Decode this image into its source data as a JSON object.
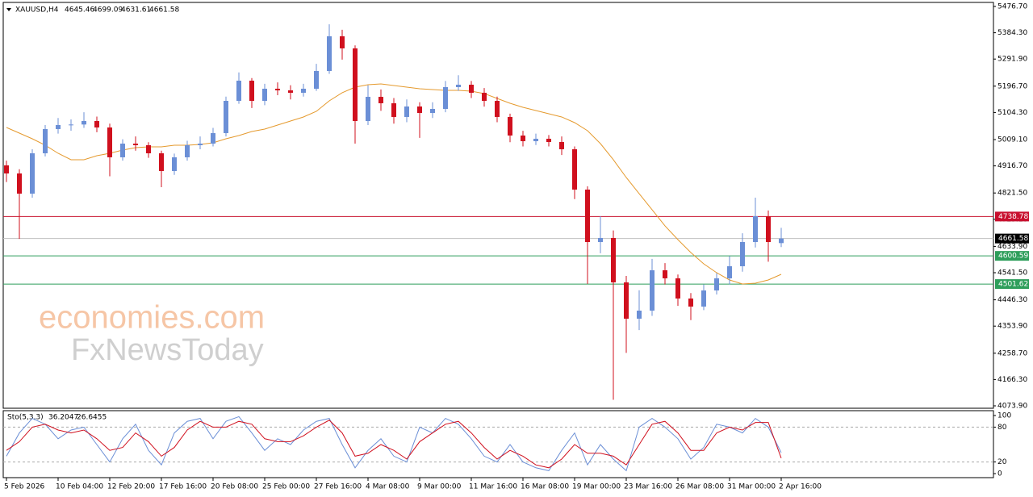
{
  "chart_data": [
    {
      "type": "candlestick",
      "symbol": "XAUUSD,H4",
      "watermark": [
        "economies.com",
        "FxNewsToday"
      ],
      "categories": [
        "5 Feb 2026",
        null,
        null,
        null,
        "10 Feb 04:00",
        null,
        null,
        null,
        "12 Feb 20:00",
        null,
        null,
        null,
        "17 Feb 16:00",
        null,
        null,
        null,
        "20 Feb 08:00",
        null,
        null,
        null,
        "25 Feb 00:00",
        null,
        null,
        null,
        "27 Feb 16:00",
        null,
        null,
        null,
        "4 Mar 08:00",
        null,
        null,
        null,
        "9 Mar 00:00",
        null,
        null,
        null,
        "11 Mar 16:00",
        null,
        null,
        null,
        "16 Mar 08:00",
        null,
        null,
        null,
        "19 Mar 00:00",
        null,
        null,
        null,
        "23 Mar 16:00",
        null,
        null,
        null,
        "26 Mar 08:00",
        null,
        null,
        null,
        "31 Mar 00:00",
        null,
        null,
        null,
        "2 Apr 16:00"
      ],
      "open": [
        4918.5,
        4890.1,
        4819.2,
        4960.9,
        5046.0,
        5060.1,
        5062.0,
        5074.3,
        5051.6,
        4946.8,
        4994.9,
        4989.3,
        4960.9,
        4898.6,
        4946.8,
        4989.3,
        4994.9,
        5031.8,
        5145.1,
        5216.0,
        5145.1,
        5187.7,
        5182.0,
        5173.5,
        5187.7,
        5250.0,
        5371.9,
        5329.4,
        5074.3,
        5159.3,
        5136.6,
        5088.5,
        5125.3,
        5102.6,
        5116.8,
        5193.3,
        5201.8,
        5173.5,
        5145.1,
        5088.5,
        5023.3,
        5003.4,
        5012.0,
        5000.6,
        4975.1,
        4833.4,
        4649.2,
        4663.4,
        4507.5,
        4380.0,
        4408.3,
        4550.0,
        4521.7,
        4450.8,
        4422.5,
        4479.2,
        4521.7,
        4564.2,
        4649.2,
        4739.9,
        4645.46
      ],
      "high": [
        4935,
        4905,
        4975,
        5060,
        5085,
        5080,
        5105,
        5090,
        5065,
        5010,
        5020,
        5000,
        4970,
        4960,
        5005,
        5020,
        5050,
        5160,
        5245,
        5225,
        5205,
        5210,
        5200,
        5205,
        5275,
        5414,
        5395,
        5340,
        5200,
        5185,
        5155,
        5150,
        5140,
        5140,
        5215,
        5235,
        5215,
        5190,
        5160,
        5100,
        5040,
        5030,
        5025,
        5020,
        4985,
        4845,
        4740,
        4690,
        4530,
        4480,
        4590,
        4575,
        4535,
        4470,
        4500,
        4540,
        4600,
        4680,
        4805,
        4760,
        4699.09
      ],
      "low": [
        4860,
        4660,
        4805,
        4950,
        5030,
        5040,
        5050,
        5035,
        4880,
        4935,
        4970,
        4945,
        4842,
        4885,
        4935,
        4975,
        4985,
        5020,
        5135,
        5120,
        5130,
        5165,
        5150,
        5160,
        5180,
        5240,
        5290,
        4995,
        5060,
        5110,
        5065,
        5070,
        5015,
        5085,
        5105,
        5180,
        5155,
        5125,
        5070,
        5000,
        4985,
        4990,
        4985,
        4955,
        4800,
        4502,
        4610,
        4095,
        4260,
        4340,
        4390,
        4500,
        4425,
        4375,
        4410,
        4465,
        4500,
        4545,
        4630,
        4580,
        4631.61
      ],
      "close": [
        4890.1,
        4819.2,
        4960.9,
        5046.0,
        5060.1,
        5062.0,
        5074.3,
        5051.6,
        4946.8,
        4994.9,
        4989.3,
        4960.9,
        4898.6,
        4946.8,
        4989.3,
        4994.9,
        5031.8,
        5145.1,
        5216.0,
        5145.1,
        5187.7,
        5182.0,
        5173.5,
        5187.7,
        5250.0,
        5371.9,
        5329.4,
        5074.3,
        5159.3,
        5136.6,
        5088.5,
        5125.3,
        5102.6,
        5116.8,
        5193.3,
        5201.8,
        5173.5,
        5145.1,
        5088.5,
        5023.3,
        5003.4,
        5012.0,
        5000.6,
        4975.1,
        4833.4,
        4649.2,
        4663.4,
        4507.5,
        4380.0,
        4408.3,
        4550.0,
        4521.7,
        4450.8,
        4422.5,
        4479.2,
        4521.7,
        4564.2,
        4649.2,
        4739.9,
        4649.2,
        4661.58
      ],
      "up_color": "#6b8fd6",
      "down_color": "#d0101e",
      "series": [
        {
          "color": "#e59a2e",
          "values": [
            5051.6,
            5031.8,
            5011.9,
            4989.3,
            4960.9,
            4938.3,
            4938.3,
            4952.4,
            4960.9,
            4972.3,
            4980.8,
            4983.6,
            4983.6,
            4989.3,
            4989.3,
            4992.1,
            4997.8,
            5011.9,
            5023.3,
            5037.5,
            5046.0,
            5060.1,
            5074.3,
            5088.5,
            5108.3,
            5145.1,
            5173.5,
            5193.3,
            5201.8,
            5204.7,
            5199.0,
            5193.3,
            5187.7,
            5184.8,
            5182.0,
            5182.0,
            5179.2,
            5170.7,
            5153.6,
            5136.6,
            5122.5,
            5111.1,
            5099.8,
            5088.5,
            5068.6,
            5040.3,
            4994.9,
            4938.3,
            4875.9,
            4819.2,
            4762.6,
            4705.9,
            4657.7,
            4612.4,
            4572.7,
            4541.5,
            4516.0,
            4501.8,
            4504.6,
            4516.0,
            4535.8
          ]
        }
      ],
      "levels": [
        {
          "value": 4738.78,
          "color": "#c8102e"
        },
        {
          "value": 4661.58,
          "color": "#000000",
          "line": "#c0c0c0"
        },
        {
          "value": 4600.59,
          "color": "#2e9e5b"
        },
        {
          "value": 4501.62,
          "color": "#2e9e5b"
        }
      ],
      "ylim": [
        4065.4,
        5488.0
      ],
      "yticks": [
        {
          "value": 5476.7,
          "label": "5476.70"
        },
        {
          "value": 5384.3,
          "label": "5384.30"
        },
        {
          "value": 5291.9,
          "label": "5291.90"
        },
        {
          "value": 5196.7,
          "label": "5196.70"
        },
        {
          "value": 5104.3,
          "label": "5104.30"
        },
        {
          "value": 5009.1,
          "label": "5009.10"
        },
        {
          "value": 4916.7,
          "label": "4916.70"
        },
        {
          "value": 4821.5,
          "label": "4821.50"
        },
        {
          "value": 4729.1,
          "label": "4729.10"
        },
        {
          "value": 4633.9,
          "label": "4633.90"
        },
        {
          "value": 4541.5,
          "label": "4541.50"
        },
        {
          "value": 4446.3,
          "label": "4446.30"
        },
        {
          "value": 4353.9,
          "label": "4353.90"
        },
        {
          "value": 4258.7,
          "label": "4258.70"
        },
        {
          "value": 4166.3,
          "label": "4166.30"
        },
        {
          "value": 4073.9,
          "label": "4073.90"
        }
      ]
    },
    {
      "type": "line",
      "title": "Sto(5,3,3)",
      "series": [
        {
          "color": "#6b8fd6",
          "values": [
            30,
            70,
            95,
            85,
            60,
            75,
            80,
            50,
            20,
            60,
            85,
            40,
            15,
            70,
            90,
            95,
            60,
            90,
            98,
            70,
            40,
            60,
            50,
            75,
            90,
            95,
            50,
            10,
            40,
            60,
            30,
            20,
            80,
            70,
            95,
            85,
            60,
            30,
            20,
            50,
            20,
            10,
            5,
            40,
            70,
            15,
            50,
            25,
            5,
            80,
            95,
            80,
            60,
            25,
            45,
            85,
            80,
            70,
            95,
            80,
            36.2047
          ]
        },
        {
          "color": "#d0101e",
          "values": [
            40,
            55,
            80,
            85,
            75,
            70,
            75,
            60,
            40,
            45,
            70,
            55,
            30,
            45,
            75,
            90,
            80,
            80,
            90,
            85,
            60,
            55,
            55,
            65,
            80,
            92,
            70,
            30,
            35,
            50,
            40,
            25,
            55,
            70,
            85,
            90,
            70,
            45,
            25,
            40,
            30,
            15,
            10,
            25,
            50,
            35,
            35,
            30,
            15,
            50,
            85,
            90,
            70,
            40,
            40,
            70,
            80,
            75,
            88,
            88,
            26.6455
          ]
        }
      ],
      "ylim": [
        0,
        100
      ],
      "yticks": [
        0,
        20,
        80,
        100
      ],
      "levels": [
        20,
        80
      ]
    }
  ]
}
